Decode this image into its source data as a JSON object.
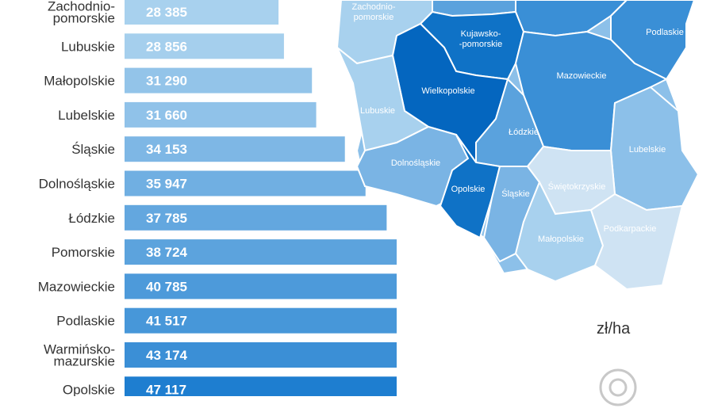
{
  "chart_data": {
    "type": "bar",
    "orientation": "horizontal",
    "unit": "zł/ha",
    "categories": [
      "Zachodnio-\npomorskie",
      "Lubuskie",
      "Małopolskie",
      "Lubelskie",
      "Śląskie",
      "Dolnośląskie",
      "Łódzkie",
      "Pomorskie",
      "Mazowieckie",
      "Podlaskie",
      "Warmińsko-\nmazurskie",
      "Opolskie"
    ],
    "values": [
      28385,
      28856,
      31290,
      31660,
      34153,
      35947,
      37785,
      38724,
      40785,
      41517,
      43174,
      47117
    ],
    "value_labels": [
      "28 385",
      "28 856",
      "31 290",
      "31 660",
      "34 153",
      "35 947",
      "37 785",
      "38 724",
      "40 785",
      "41 517",
      "43 174",
      "47 117"
    ],
    "colors": {
      "bar_light": "#a8d1ee",
      "bar_dark": "#1e7ed0",
      "label_text": "#333333",
      "value_text": "#ffffff"
    }
  },
  "map": {
    "regions": [
      {
        "name": "Zachodnio-\npomorskie",
        "color": "#a8d1ee"
      },
      {
        "name": "Kujawsko-\n-pomorskie",
        "color": "#0f72c6"
      },
      {
        "name": "Podlaskie",
        "color": "#3a8fd6"
      },
      {
        "name": "Mazowieckie",
        "color": "#3a8fd6"
      },
      {
        "name": "Wielkopolskie",
        "color": "#0466bf"
      },
      {
        "name": "Lubuskie",
        "color": "#a8d1ee"
      },
      {
        "name": "Łódzkie",
        "color": "#5aa2dd"
      },
      {
        "name": "Lubelskie",
        "color": "#8cc0e9"
      },
      {
        "name": "Dolnośląskie",
        "color": "#7ab4e4"
      },
      {
        "name": "Opolskie",
        "color": "#0f72c6"
      },
      {
        "name": "Śląskie",
        "color": "#7ab4e4"
      },
      {
        "name": "Świętokrzyskie",
        "color": "#cfe3f3"
      },
      {
        "name": "Małopolskie",
        "color": "#a8d1ee"
      },
      {
        "name": "Podkarpackie",
        "color": "#cfe3f3"
      },
      {
        "name": "Warmińsko-\nmazurskie",
        "color": "#3a8fd6"
      },
      {
        "name": "Pomorskie",
        "color": "#5aa2dd"
      }
    ]
  },
  "legend": {
    "unit_label": "zł/ha"
  },
  "controls": {
    "scroll_icon": "circle-scroll-icon"
  }
}
